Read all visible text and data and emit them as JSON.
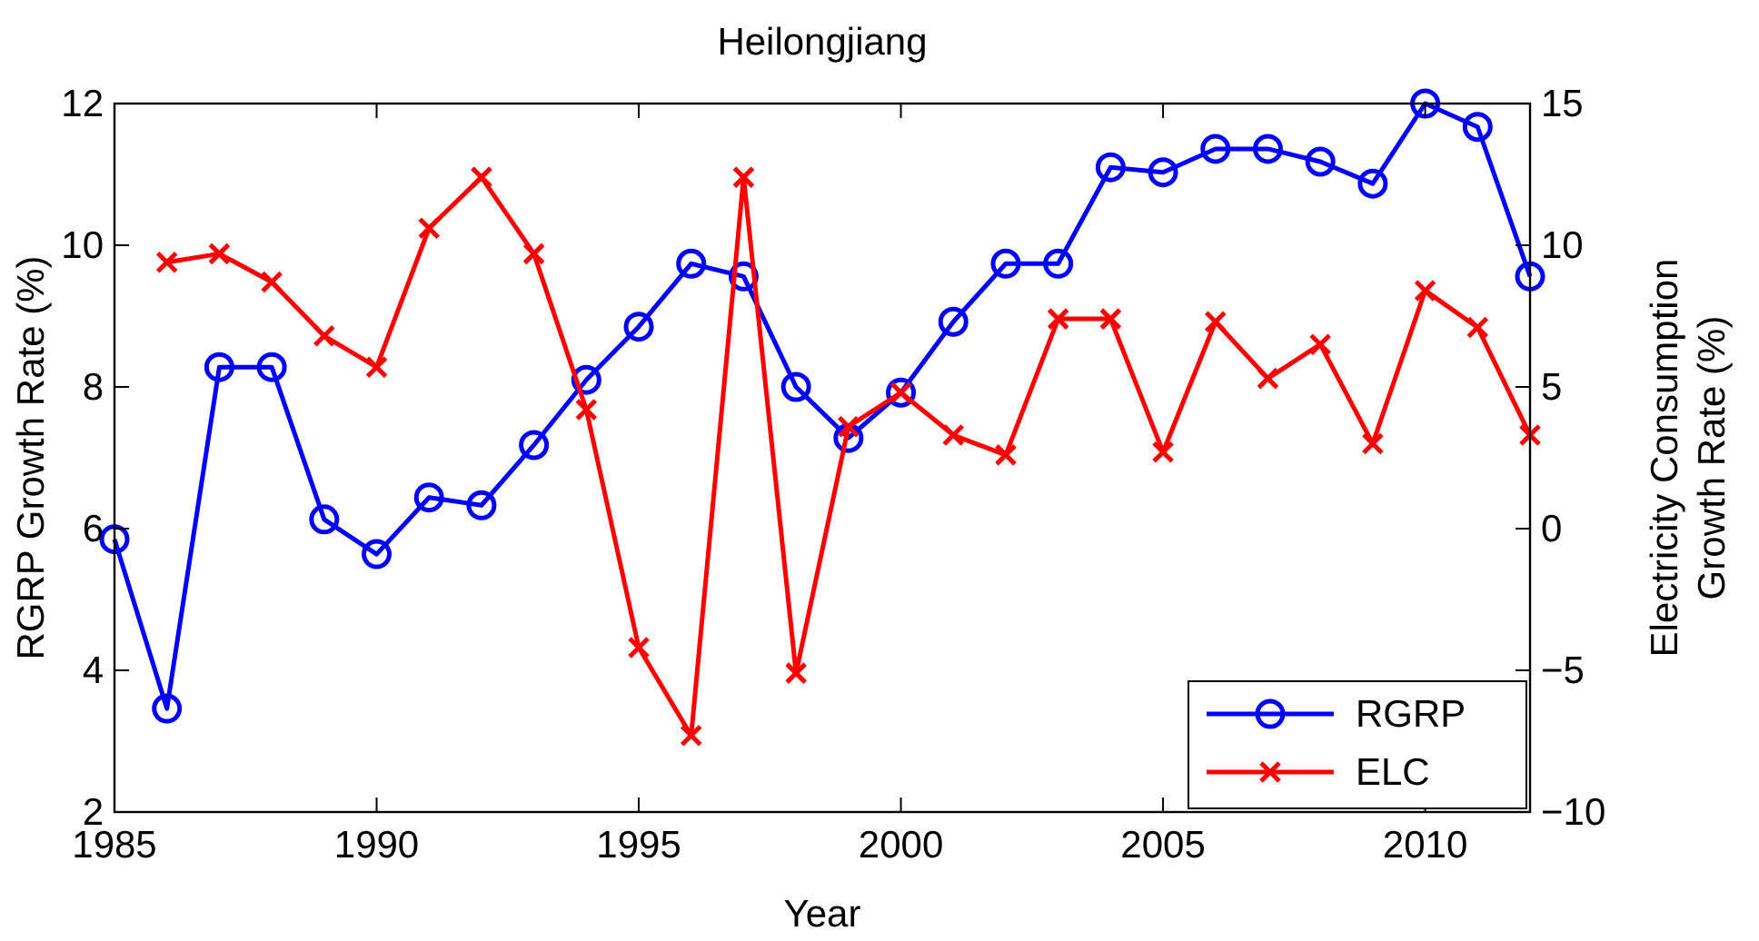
{
  "chart_data": {
    "type": "line",
    "title": "Heilongjiang",
    "xlabel": "Year",
    "ylabel": "RGRP Growth Rate (%)",
    "y2label": "Electricity Consumption\nGrowth Rate (%)",
    "x": [
      1985,
      1986,
      1987,
      1988,
      1989,
      1990,
      1991,
      1992,
      1993,
      1994,
      1995,
      1996,
      1997,
      1998,
      1999,
      2000,
      2001,
      2002,
      2003,
      2004,
      2005,
      2006,
      2007,
      2008,
      2009,
      2010,
      2011,
      2012
    ],
    "xlim": [
      1985,
      2012
    ],
    "xticks": [
      1985,
      1990,
      1995,
      2000,
      2005,
      2010
    ],
    "ylim": [
      2,
      12
    ],
    "yticks": [
      2,
      4,
      6,
      8,
      10,
      12
    ],
    "y2lim": [
      -10,
      15
    ],
    "y2ticks": [
      -10,
      -5,
      0,
      5,
      10,
      15
    ],
    "legend": "bottom right",
    "grid": false,
    "series": [
      {
        "name": "RGRP",
        "color": "#0000ff",
        "marker": "circle",
        "values": [
          5.85,
          3.46,
          8.28,
          8.28,
          6.13,
          5.64,
          6.44,
          6.33,
          7.18,
          8.1,
          8.85,
          9.74,
          9.56,
          8.0,
          7.28,
          7.92,
          8.92,
          9.74,
          9.74,
          11.1,
          11.03,
          11.36,
          11.36,
          11.18,
          10.87,
          12.0,
          11.67,
          9.56
        ]
      },
      {
        "name": "ELC",
        "color": "#ff0000",
        "marker": "cross",
        "axis": "y2",
        "values": [
          null,
          9.4,
          9.7,
          8.7,
          6.8,
          5.7,
          10.6,
          12.4,
          9.7,
          4.2,
          -4.2,
          -7.3,
          12.4,
          -5.1,
          3.6,
          4.8,
          3.3,
          2.6,
          7.4,
          7.4,
          2.7,
          7.3,
          5.3,
          6.5,
          3.0,
          8.4,
          7.1,
          3.3
        ]
      }
    ]
  }
}
